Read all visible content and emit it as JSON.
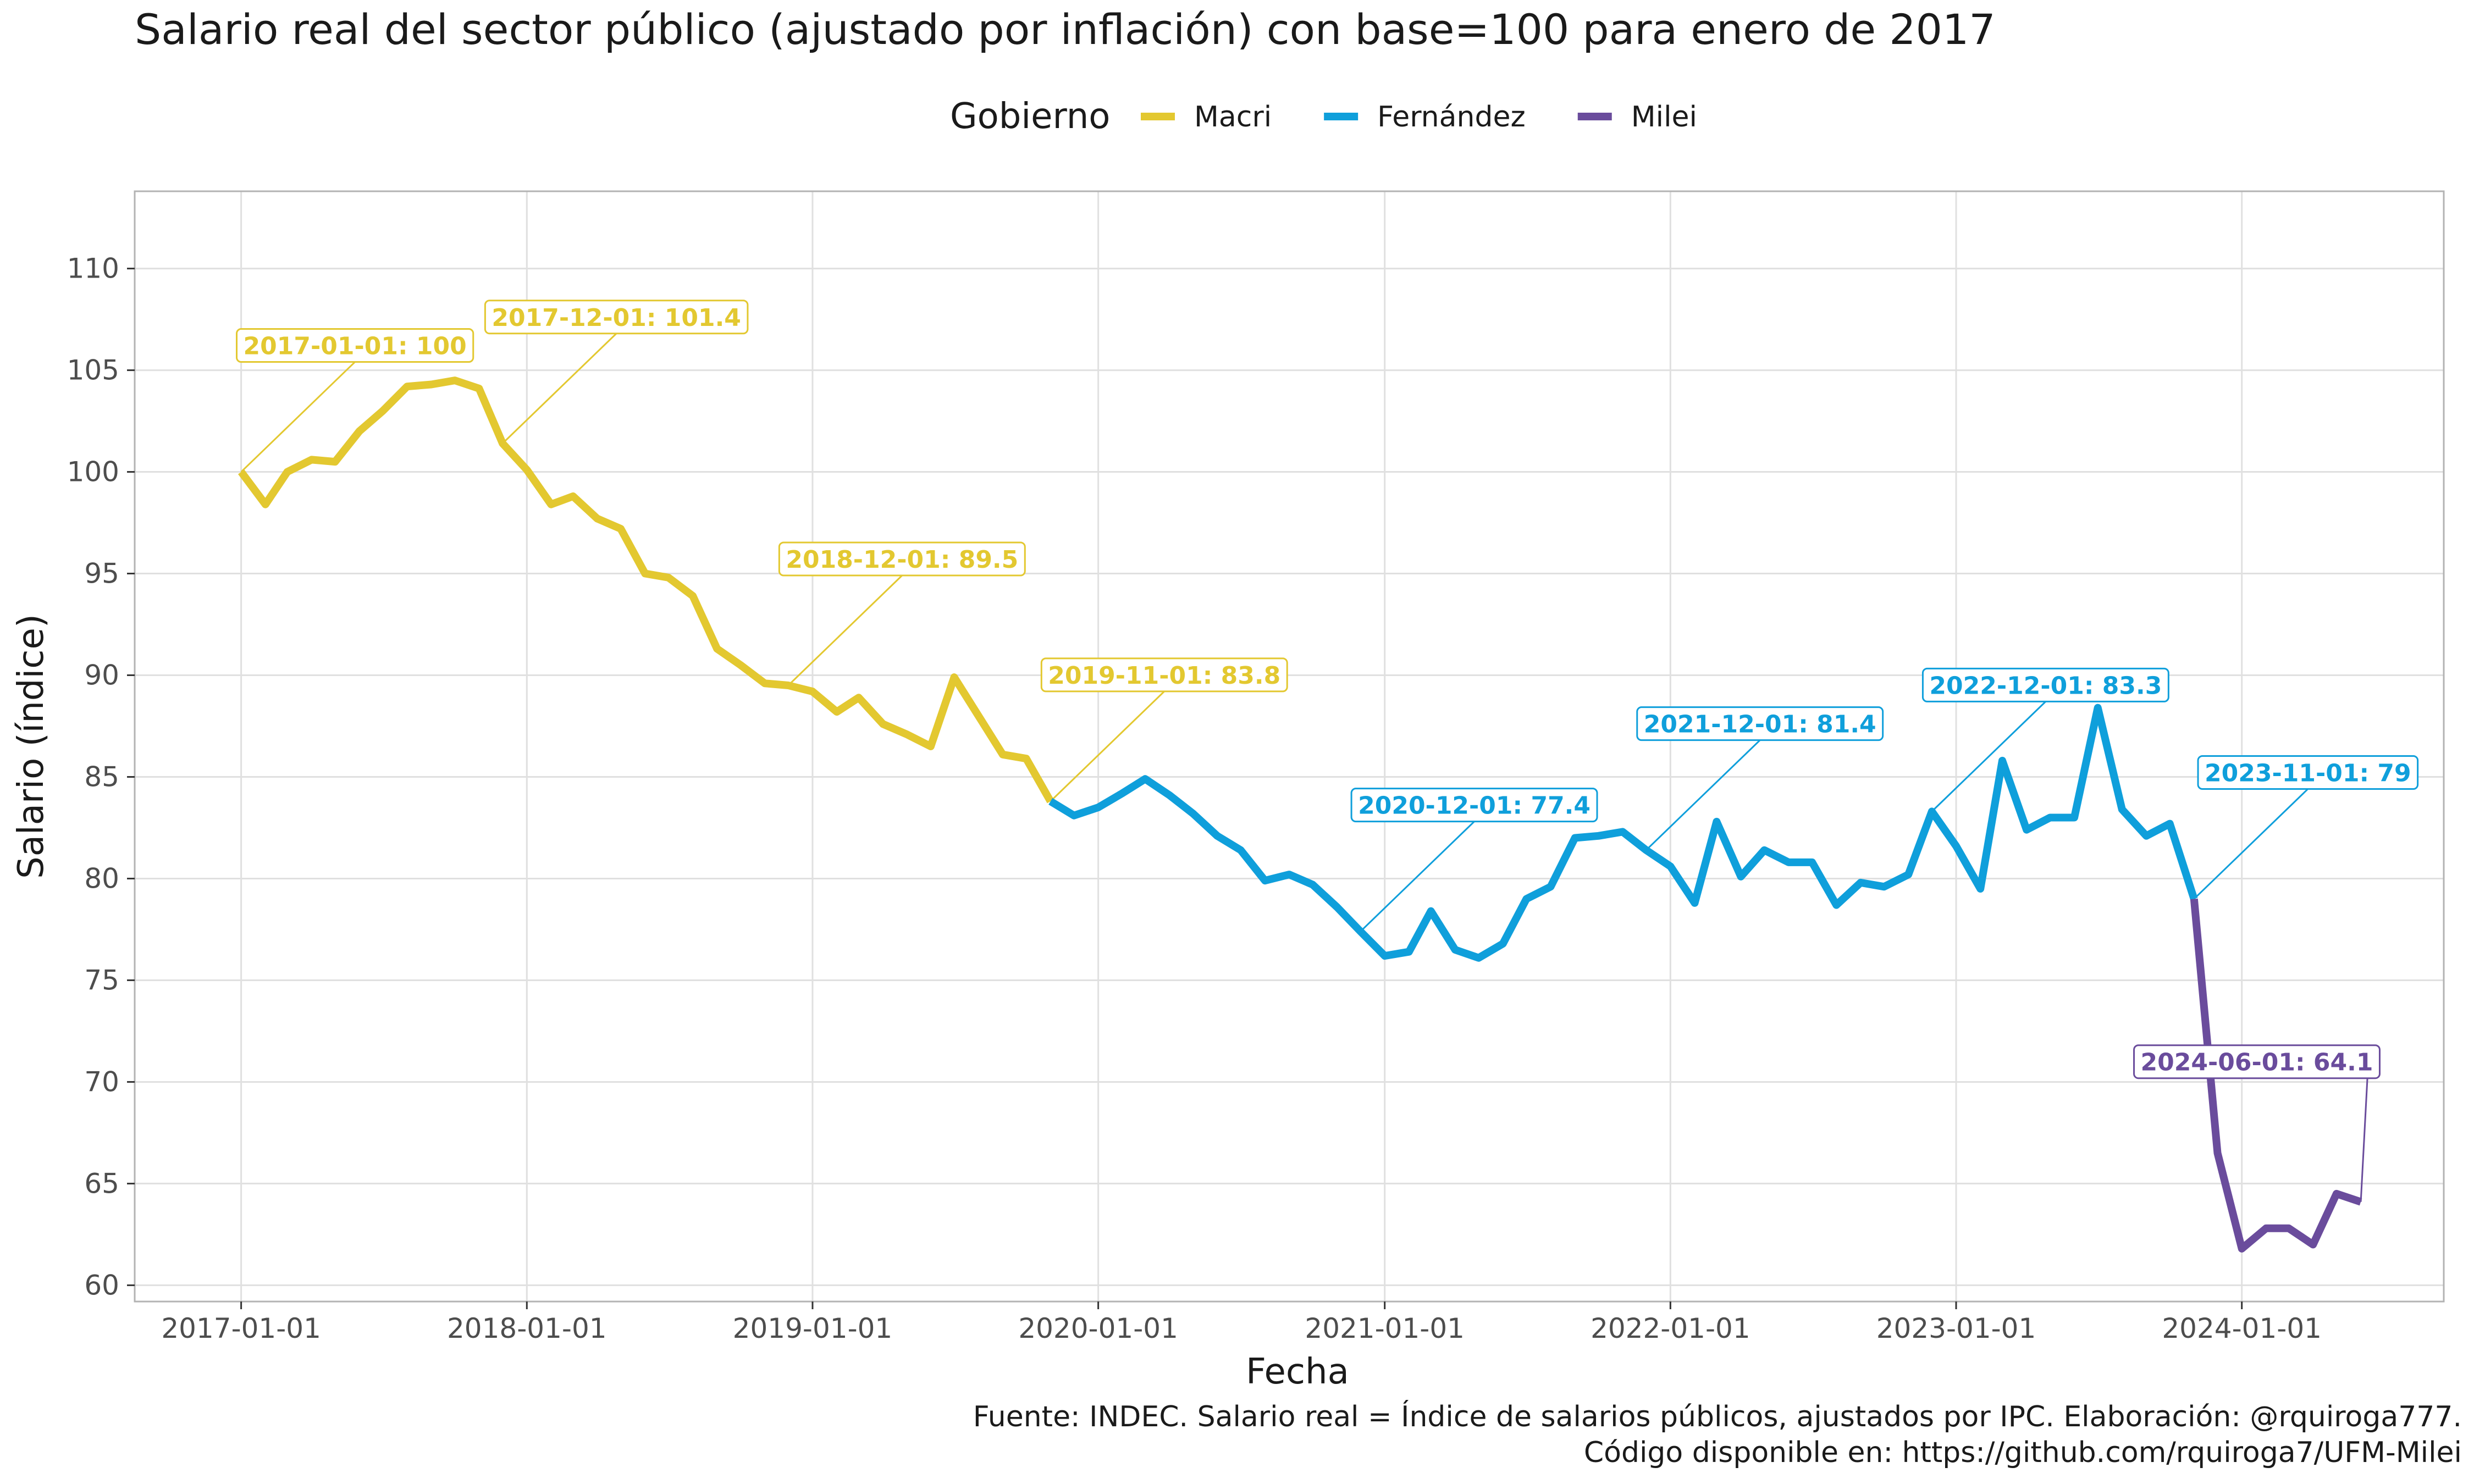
{
  "chart_data": {
    "type": "line",
    "title": "Salario real del sector público (ajustado por inflación) con base=100 para enero de 2017",
    "xlabel": "Fecha",
    "ylabel": "Salario (índice)",
    "ylim": [
      59.2,
      113.8
    ],
    "yticks": [
      60,
      65,
      70,
      75,
      80,
      85,
      90,
      95,
      100,
      105,
      110
    ],
    "xlim": [
      "2016-08-18",
      "2024-09-15"
    ],
    "xticks": [
      "2017-01-01",
      "2018-01-01",
      "2019-01-01",
      "2020-01-01",
      "2021-01-01",
      "2022-01-01",
      "2023-01-01",
      "2024-01-01"
    ],
    "grid": true,
    "legend": {
      "title": "Gobierno",
      "position": "top"
    },
    "caption": [
      "Fuente: INDEC. Salario real = Índice de salarios públicos, ajustados por IPC. Elaboración: @rquiroga777.",
      "Código disponible en: https://github.com/rquiroga7/UFM-Milei"
    ],
    "series": [
      {
        "name": "Macri",
        "color": "#E3C830",
        "x": [
          "2017-01-01",
          "2017-02-01",
          "2017-03-01",
          "2017-04-01",
          "2017-05-01",
          "2017-06-01",
          "2017-07-01",
          "2017-08-01",
          "2017-09-01",
          "2017-10-01",
          "2017-11-01",
          "2017-12-01",
          "2018-01-01",
          "2018-02-01",
          "2018-03-01",
          "2018-04-01",
          "2018-05-01",
          "2018-06-01",
          "2018-07-01",
          "2018-08-01",
          "2018-09-01",
          "2018-10-01",
          "2018-11-01",
          "2018-12-01",
          "2019-01-01",
          "2019-02-01",
          "2019-03-01",
          "2019-04-01",
          "2019-05-01",
          "2019-06-01",
          "2019-07-01",
          "2019-08-01",
          "2019-09-01",
          "2019-10-01",
          "2019-11-01"
        ],
        "values": [
          100,
          98.4,
          100,
          100.6,
          100.5,
          102,
          103,
          104.2,
          104.3,
          104.5,
          104.1,
          101.4,
          100.1,
          98.4,
          98.8,
          97.7,
          97.2,
          95,
          94.8,
          93.9,
          91.3,
          90.5,
          89.6,
          89.5,
          89.2,
          88.2,
          88.9,
          87.6,
          87.1,
          86.5,
          89.9,
          88,
          86.1,
          85.9,
          83.8
        ]
      },
      {
        "name": "Fernández",
        "color": "#0F9FDB",
        "x": [
          "2019-11-01",
          "2019-12-01",
          "2020-01-01",
          "2020-02-01",
          "2020-03-01",
          "2020-04-01",
          "2020-05-01",
          "2020-06-01",
          "2020-07-01",
          "2020-08-01",
          "2020-09-01",
          "2020-10-01",
          "2020-11-01",
          "2020-12-01",
          "2021-01-01",
          "2021-02-01",
          "2021-03-01",
          "2021-04-01",
          "2021-05-01",
          "2021-06-01",
          "2021-07-01",
          "2021-08-01",
          "2021-09-01",
          "2021-10-01",
          "2021-11-01",
          "2021-12-01",
          "2022-01-01",
          "2022-02-01",
          "2022-03-01",
          "2022-04-01",
          "2022-05-01",
          "2022-06-01",
          "2022-07-01",
          "2022-08-01",
          "2022-09-01",
          "2022-10-01",
          "2022-11-01",
          "2022-12-01",
          "2023-01-01",
          "2023-02-01",
          "2023-03-01",
          "2023-04-01",
          "2023-05-01",
          "2023-06-01",
          "2023-07-01",
          "2023-08-01",
          "2023-09-01",
          "2023-10-01",
          "2023-11-01"
        ],
        "values": [
          83.8,
          83.1,
          83.5,
          84.2,
          84.9,
          84.1,
          83.2,
          82.1,
          81.4,
          79.9,
          80.2,
          79.7,
          78.6,
          77.4,
          76.2,
          76.4,
          78.4,
          76.5,
          76.1,
          76.8,
          79,
          79.6,
          82,
          82.1,
          82.3,
          81.4,
          80.6,
          78.8,
          82.8,
          80.1,
          81.4,
          80.8,
          80.8,
          78.7,
          79.8,
          79.6,
          80.2,
          83.3,
          81.6,
          79.5,
          85.8,
          82.4,
          83,
          83,
          88.4,
          83.4,
          82.1,
          82.7,
          79
        ]
      },
      {
        "name": "Milei",
        "color": "#6A4C9C",
        "x": [
          "2023-11-01",
          "2023-12-01",
          "2024-01-01",
          "2024-02-01",
          "2024-03-01",
          "2024-04-01",
          "2024-05-01",
          "2024-06-01"
        ],
        "values": [
          79,
          66.5,
          61.8,
          62.8,
          62.8,
          62,
          64.5,
          64.1
        ]
      }
    ],
    "annotations": [
      {
        "label": "2017-01-01: 100",
        "series": "Macri",
        "x": "2017-01-01",
        "y": 100
      },
      {
        "label": "2017-12-01: 101.4",
        "series": "Macri",
        "x": "2017-12-01",
        "y": 101.4
      },
      {
        "label": "2018-12-01: 89.5",
        "series": "Macri",
        "x": "2018-12-01",
        "y": 89.5
      },
      {
        "label": "2019-11-01: 83.8",
        "series": "Macri",
        "x": "2019-11-01",
        "y": 83.8
      },
      {
        "label": "2020-12-01: 77.4",
        "series": "Fernández",
        "x": "2020-12-01",
        "y": 77.4
      },
      {
        "label": "2021-12-01: 81.4",
        "series": "Fernández",
        "x": "2021-12-01",
        "y": 81.4
      },
      {
        "label": "2022-12-01: 83.3",
        "series": "Fernández",
        "x": "2022-12-01",
        "y": 83.3
      },
      {
        "label": "2023-11-01: 79",
        "series": "Fernández",
        "x": "2023-11-01",
        "y": 79
      },
      {
        "label": "2024-06-01: 64.1",
        "series": "Milei",
        "x": "2024-06-01",
        "y": 64.1
      }
    ]
  }
}
